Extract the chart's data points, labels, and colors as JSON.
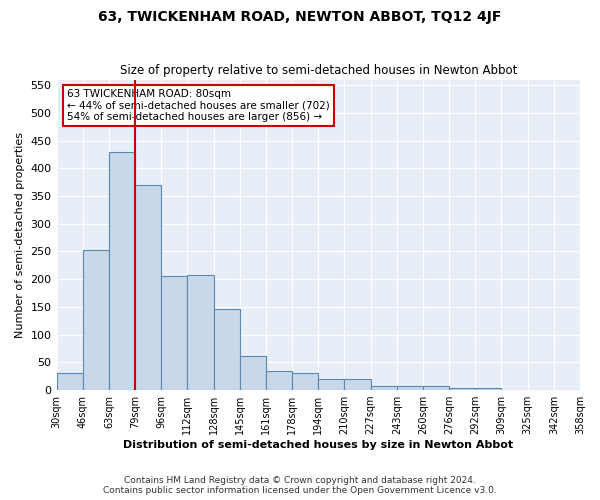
{
  "title": "63, TWICKENHAM ROAD, NEWTON ABBOT, TQ12 4JF",
  "subtitle": "Size of property relative to semi-detached houses in Newton Abbot",
  "xlabel": "Distribution of semi-detached houses by size in Newton Abbot",
  "ylabel": "Number of semi-detached properties",
  "footnote1": "Contains HM Land Registry data © Crown copyright and database right 2024.",
  "footnote2": "Contains public sector information licensed under the Open Government Licence v3.0.",
  "bar_color": "#c8d8e8",
  "bar_edge_color": "#5a8ab0",
  "bg_color": "#e8eef8",
  "annotation_box_color": "#cc0000",
  "annotation_line1": "63 TWICKENHAM ROAD: 80sqm",
  "annotation_line2": "← 44% of semi-detached houses are smaller (702)",
  "annotation_line3": "54% of semi-detached houses are larger (856) →",
  "property_line_color": "#cc0000",
  "bin_labels": [
    "30sqm",
    "46sqm",
    "63sqm",
    "79sqm",
    "96sqm",
    "112sqm",
    "128sqm",
    "145sqm",
    "161sqm",
    "178sqm",
    "194sqm",
    "210sqm",
    "227sqm",
    "243sqm",
    "260sqm",
    "276sqm",
    "292sqm",
    "309sqm",
    "325sqm",
    "342sqm",
    "358sqm"
  ],
  "bar_heights": [
    30,
    253,
    430,
    370,
    205,
    207,
    147,
    62,
    35,
    30,
    20,
    20,
    7,
    7,
    7,
    3,
    3,
    1,
    1,
    1
  ],
  "ylim": [
    0,
    560
  ],
  "yticks": [
    0,
    50,
    100,
    150,
    200,
    250,
    300,
    350,
    400,
    450,
    500,
    550
  ],
  "property_bar_index": 3
}
